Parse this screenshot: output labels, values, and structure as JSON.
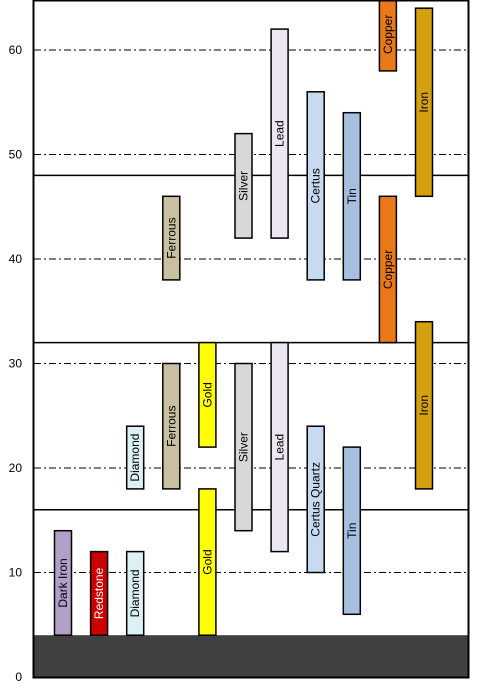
{
  "chart_data": {
    "type": "bar",
    "title": "",
    "xlabel": "",
    "ylabel": "",
    "ylim": [
      0,
      65
    ],
    "yticks": [
      0,
      10,
      20,
      30,
      40,
      50,
      60
    ],
    "ytick_labels": [
      "0",
      "10",
      "20",
      "30",
      "40",
      "50",
      "60"
    ],
    "dashed_gridlines": [
      10,
      20,
      30,
      40,
      50,
      60
    ],
    "solid_lines": [
      16,
      32,
      48
    ],
    "bedrock": {
      "from": 0,
      "to": 4,
      "color": "#404040"
    },
    "columns": 12,
    "bars": [
      {
        "label": "Dark Iron",
        "col": 0,
        "from": 4,
        "to": 14,
        "color": "#b0a0c8",
        "text_color": "#000000"
      },
      {
        "label": "Redstone",
        "col": 1,
        "from": 4,
        "to": 12,
        "color": "#cc0000",
        "text_color": "#ffffff"
      },
      {
        "label": "Diamond",
        "col": 2,
        "from": 4,
        "to": 12,
        "color": "#dcf0f5",
        "text_color": "#000000"
      },
      {
        "label": "Diamond",
        "col": 2,
        "from": 18,
        "to": 24,
        "color": "#dcf0f5",
        "text_color": "#000000"
      },
      {
        "label": "Ferrous",
        "col": 3,
        "from": 18,
        "to": 30,
        "color": "#c8c0a0",
        "text_color": "#000000"
      },
      {
        "label": "Ferrous",
        "col": 3,
        "from": 38,
        "to": 46,
        "color": "#c8c0a0",
        "text_color": "#000000"
      },
      {
        "label": "Gold",
        "col": 4,
        "from": 4,
        "to": 18,
        "color": "#ffff00",
        "text_color": "#000000"
      },
      {
        "label": "Gold",
        "col": 4,
        "from": 22,
        "to": 32,
        "color": "#ffff00",
        "text_color": "#000000"
      },
      {
        "label": "Silver",
        "col": 5,
        "from": 14,
        "to": 30,
        "color": "#d8d8d8",
        "text_color": "#000000"
      },
      {
        "label": "Silver",
        "col": 5,
        "from": 42,
        "to": 52,
        "color": "#d8d8d8",
        "text_color": "#000000"
      },
      {
        "label": "Lead",
        "col": 6,
        "from": 12,
        "to": 32,
        "color": "#ece6f0",
        "text_color": "#000000"
      },
      {
        "label": "Lead",
        "col": 6,
        "from": 42,
        "to": 62,
        "color": "#ece6f0",
        "text_color": "#000000"
      },
      {
        "label": "Certus Quartz",
        "col": 7,
        "from": 10,
        "to": 24,
        "color": "#c8daf0",
        "text_color": "#000000"
      },
      {
        "label": "Certus",
        "col": 7,
        "from": 38,
        "to": 56,
        "color": "#c8daf0",
        "text_color": "#000000"
      },
      {
        "label": "Tin",
        "col": 8,
        "from": 6,
        "to": 22,
        "color": "#a8c0e0",
        "text_color": "#000000"
      },
      {
        "label": "Tin",
        "col": 8,
        "from": 38,
        "to": 54,
        "color": "#a8c0e0",
        "text_color": "#000000"
      },
      {
        "label": "Copper",
        "col": 9,
        "from": 32,
        "to": 46,
        "color": "#e87818",
        "text_color": "#000000"
      },
      {
        "label": "Copper",
        "col": 9,
        "from": 58,
        "to": 65,
        "color": "#e87818",
        "text_color": "#000000"
      },
      {
        "label": "Iron",
        "col": 10,
        "from": 18,
        "to": 34,
        "color": "#d4a010",
        "text_color": "#000000"
      },
      {
        "label": "Iron",
        "col": 10,
        "from": 46,
        "to": 64,
        "color": "#d4a010",
        "text_color": "#000000"
      }
    ]
  }
}
